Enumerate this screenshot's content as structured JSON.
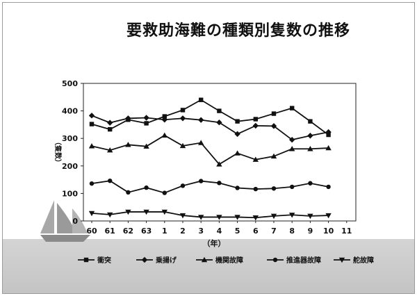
{
  "title": "要救助海難の種類別隻数の推移",
  "chart_data": {
    "type": "line",
    "categories": [
      "60",
      "61",
      "62",
      "63",
      "1",
      "2",
      "3",
      "4",
      "5",
      "6",
      "7",
      "8",
      "9",
      "10",
      "11"
    ],
    "ylabel": "（隻数）",
    "xlabel": "（年）",
    "ylim": [
      0,
      500
    ],
    "yticks": [
      0,
      100,
      200,
      300,
      400,
      500
    ],
    "legend_position": "bottom",
    "grid": false,
    "series": [
      {
        "name": "衝突",
        "marker": "square",
        "values": [
          352,
          333,
          368,
          355,
          380,
          403,
          440,
          400,
          362,
          370,
          390,
          410,
          362,
          313,
          null
        ]
      },
      {
        "name": "乗揚げ",
        "marker": "diamond",
        "values": [
          383,
          357,
          373,
          375,
          368,
          373,
          367,
          358,
          316,
          346,
          345,
          295,
          310,
          323,
          null
        ]
      },
      {
        "name": "機関故障",
        "marker": "triangle",
        "values": [
          272,
          257,
          277,
          271,
          311,
          273,
          284,
          206,
          246,
          223,
          235,
          262,
          262,
          265,
          null
        ]
      },
      {
        "name": "推進器故障",
        "marker": "circle",
        "values": [
          136,
          146,
          104,
          121,
          102,
          128,
          145,
          138,
          120,
          116,
          118,
          124,
          137,
          124,
          null
        ]
      },
      {
        "name": "舵故障",
        "marker": "triangle-down",
        "values": [
          28,
          23,
          33,
          33,
          33,
          20,
          14,
          14,
          14,
          12,
          18,
          22,
          18,
          20,
          null
        ]
      }
    ]
  }
}
